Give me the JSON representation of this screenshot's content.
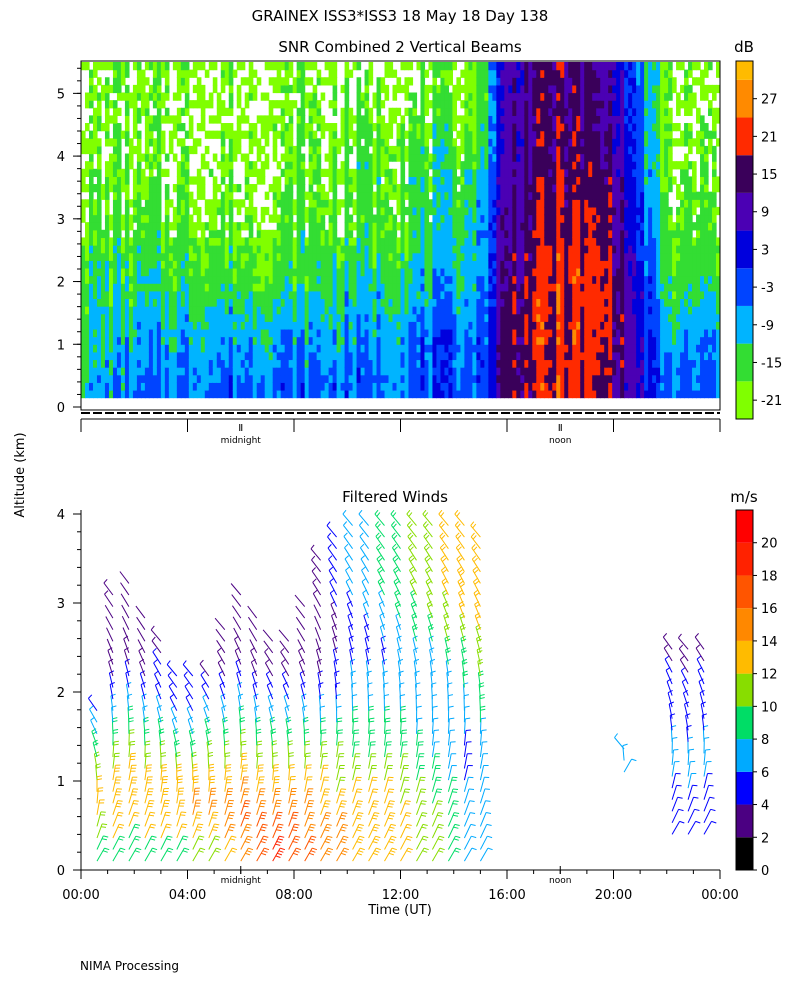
{
  "header": {
    "title": "GRAINEX ISS3*ISS3  18 May 18 Day 138"
  },
  "footer": {
    "processing": "NIMA Processing"
  },
  "shared": {
    "ylabel": "Altitude (km)"
  },
  "chart_data": [
    {
      "type": "heatmap",
      "title": "SNR Combined 2 Vertical Beams",
      "colorbar_label": "dB",
      "colorbar_ticks": [
        "27",
        "21",
        "15",
        "9",
        "3",
        "-3",
        "-9",
        "-15",
        "-21"
      ],
      "colorbar_values": [
        27,
        21,
        15,
        9,
        3,
        -3,
        -9,
        -15,
        -21
      ],
      "colorbar_range": [
        -24,
        33
      ],
      "colors": [
        "#80ff00",
        "#33dd33",
        "#00b4ff",
        "#0044ff",
        "#0000dd",
        "#4b00b4",
        "#3a005a",
        "#ff2a00",
        "#ff8a00",
        "#ffbb00"
      ],
      "xlim_hours": [
        0,
        24
      ],
      "ylim": [
        0,
        5.5
      ],
      "yticks": [
        "0",
        "1",
        "2",
        "3",
        "4",
        "5"
      ],
      "ytick_values": [
        0,
        1,
        2,
        3,
        4,
        5
      ],
      "x_markers": [
        {
          "hour": 6,
          "label": "midnight"
        },
        {
          "hour": 18,
          "label": "noon"
        }
      ],
      "rows_alt_km": [
        0.3,
        1.0,
        2.0,
        3.0,
        4.0,
        5.0
      ],
      "cols_hours": [
        0,
        2,
        4,
        6,
        8,
        10,
        12,
        14,
        15,
        16,
        18,
        20,
        22,
        24
      ],
      "values_db": [
        [
          -10,
          -6,
          -5,
          -4,
          -4,
          -4,
          -4,
          -3,
          -4,
          15,
          20,
          15,
          -5,
          -4
        ],
        [
          -12,
          -10,
          -8,
          -7,
          -8,
          -8,
          -5,
          -4,
          -4,
          15,
          20,
          18,
          -10,
          -6
        ],
        [
          -14,
          -14,
          -14,
          -15,
          -15,
          -12,
          -12,
          -9,
          -9,
          14,
          20,
          18,
          -15,
          -15
        ],
        [
          -18,
          -18,
          -18,
          -19,
          -18,
          -18,
          -15,
          -14,
          -9,
          12,
          18,
          15,
          -18,
          -18
        ],
        [
          -21,
          -21,
          -21,
          -21,
          -21,
          -18,
          -15,
          -15,
          -15,
          9,
          15,
          12,
          -21,
          -21
        ],
        [
          -21,
          -21,
          -21,
          -21,
          -21,
          -21,
          -21,
          -21,
          -18,
          9,
          15,
          9,
          -21,
          -21
        ]
      ]
    },
    {
      "type": "scatter",
      "subtype": "wind_barbs",
      "title": "Filtered Winds",
      "xlabel": "Time (UT)",
      "colorbar_label": "m/s",
      "colorbar_ticks": [
        "20",
        "18",
        "16",
        "14",
        "12",
        "10",
        "8",
        "6",
        "4",
        "2",
        "0"
      ],
      "colorbar_values": [
        20,
        18,
        16,
        14,
        12,
        10,
        8,
        6,
        4,
        2,
        0
      ],
      "colorbar_range": [
        0,
        22
      ],
      "colors": [
        "#000000",
        "#4b0082",
        "#0000ff",
        "#00aaff",
        "#00dd66",
        "#88dd00",
        "#ffbb00",
        "#ff8800",
        "#ff5500",
        "#ff2200",
        "#ff0000"
      ],
      "xlim_hours": [
        0,
        24
      ],
      "ylim": [
        0,
        4
      ],
      "yticks": [
        "0",
        "1",
        "2",
        "3",
        "4"
      ],
      "ytick_values": [
        0,
        1,
        2,
        3,
        4
      ],
      "xticks": [
        "00:00",
        "04:00",
        "08:00",
        "12:00",
        "16:00",
        "20:00",
        "00:00"
      ],
      "xtick_values": [
        0,
        4,
        8,
        12,
        16,
        20,
        24
      ],
      "x_markers": [
        {
          "hour": 6,
          "label": "midnight"
        },
        {
          "hour": 18,
          "label": "noon"
        }
      ],
      "columns": [
        {
          "hour": 0.6,
          "top": 1.9,
          "speeds": [
            8,
            11,
            12,
            12,
            10,
            8,
            6,
            4
          ]
        },
        {
          "hour": 1.2,
          "top": 3.2,
          "speeds": [
            9,
            12,
            13,
            13,
            11,
            9,
            7,
            5,
            3,
            2,
            2,
            3
          ]
        },
        {
          "hour": 1.8,
          "top": 3.3,
          "speeds": [
            9,
            12,
            13,
            13,
            11,
            9,
            7,
            5,
            3,
            2,
            2,
            2
          ]
        },
        {
          "hour": 2.4,
          "top": 2.9,
          "speeds": [
            9,
            12,
            13,
            13,
            11,
            9,
            7,
            5,
            3,
            2,
            2
          ]
        },
        {
          "hour": 3.0,
          "top": 2.6,
          "speeds": [
            9,
            12,
            13,
            13,
            11,
            9,
            7,
            5,
            4,
            3
          ]
        },
        {
          "hour": 3.6,
          "top": 2.2,
          "speeds": [
            9,
            12,
            13,
            13,
            11,
            9,
            7,
            5,
            4
          ]
        },
        {
          "hour": 4.2,
          "top": 2.2,
          "speeds": [
            10,
            13,
            14,
            13,
            11,
            9,
            7,
            5,
            4
          ]
        },
        {
          "hour": 4.8,
          "top": 2.3,
          "speeds": [
            10,
            13,
            14,
            13,
            11,
            9,
            7,
            5,
            3
          ]
        },
        {
          "hour": 5.4,
          "top": 2.7,
          "speeds": [
            12,
            14,
            14,
            13,
            11,
            9,
            7,
            5,
            3,
            2
          ]
        },
        {
          "hour": 6.0,
          "top": 3.1,
          "speeds": [
            14,
            16,
            15,
            13,
            11,
            9,
            7,
            5,
            3,
            2,
            2
          ]
        },
        {
          "hour": 6.6,
          "top": 2.9,
          "speeds": [
            16,
            17,
            15,
            13,
            11,
            9,
            7,
            5,
            3,
            2,
            2
          ]
        },
        {
          "hour": 7.2,
          "top": 2.6,
          "speeds": [
            18,
            17,
            15,
            13,
            11,
            9,
            7,
            5,
            3,
            2
          ]
        },
        {
          "hour": 7.8,
          "top": 2.6,
          "speeds": [
            17,
            16,
            14,
            12,
            10,
            8,
            6,
            4,
            3,
            2
          ]
        },
        {
          "hour": 8.4,
          "top": 3.0,
          "speeds": [
            16,
            15,
            14,
            12,
            10,
            8,
            6,
            4,
            3,
            2,
            2
          ]
        },
        {
          "hour": 9.0,
          "top": 3.5,
          "speeds": [
            15,
            15,
            13,
            12,
            10,
            8,
            6,
            5,
            3,
            2,
            2,
            3,
            3
          ]
        },
        {
          "hour": 9.6,
          "top": 3.8,
          "speeds": [
            14,
            14,
            13,
            11,
            10,
            8,
            6,
            5,
            4,
            3,
            3,
            4,
            5,
            5
          ]
        },
        {
          "hour": 10.2,
          "top": 3.9,
          "speeds": [
            13,
            13,
            12,
            11,
            9,
            8,
            7,
            6,
            5,
            5,
            5,
            6,
            6,
            6
          ]
        },
        {
          "hour": 10.8,
          "top": 3.9,
          "speeds": [
            13,
            13,
            12,
            11,
            9,
            8,
            7,
            6,
            5,
            5,
            6,
            7,
            7,
            7
          ]
        },
        {
          "hour": 11.4,
          "top": 3.9,
          "speeds": [
            13,
            13,
            12,
            11,
            9,
            8,
            7,
            6,
            5,
            6,
            7,
            8,
            8,
            8
          ]
        },
        {
          "hour": 12.0,
          "top": 3.9,
          "speeds": [
            12,
            12,
            11,
            10,
            9,
            8,
            7,
            6,
            6,
            7,
            8,
            9,
            9,
            9
          ]
        },
        {
          "hour": 12.6,
          "top": 3.9,
          "speeds": [
            11,
            11,
            10,
            9,
            8,
            7,
            7,
            6,
            6,
            8,
            9,
            10,
            10,
            10
          ]
        },
        {
          "hour": 13.2,
          "top": 3.9,
          "speeds": [
            10,
            10,
            9,
            8,
            7,
            7,
            6,
            6,
            7,
            9,
            10,
            11,
            11,
            11
          ]
        },
        {
          "hour": 13.8,
          "top": 3.9,
          "speeds": [
            9,
            9,
            8,
            7,
            6,
            6,
            6,
            7,
            8,
            10,
            11,
            12,
            12,
            12
          ]
        },
        {
          "hour": 14.4,
          "top": 3.9,
          "speeds": [
            7,
            7,
            6,
            5,
            5,
            6,
            7,
            8,
            9,
            11,
            12,
            13,
            12,
            12
          ]
        },
        {
          "hour": 15.0,
          "top": 3.8,
          "speeds": [
            7,
            7,
            7,
            6,
            6,
            7,
            8,
            9,
            10,
            11,
            12,
            12,
            12,
            12
          ]
        },
        {
          "hour": 20.4,
          "top": 1.4,
          "bottom": 1.1,
          "speeds": [
            6,
            7
          ]
        },
        {
          "hour": 22.2,
          "top": 2.6,
          "bottom": 0.4,
          "speeds": [
            4,
            5,
            6,
            6,
            5,
            5,
            4,
            3
          ]
        },
        {
          "hour": 22.8,
          "top": 2.5,
          "bottom": 0.4,
          "speeds": [
            4,
            5,
            6,
            6,
            5,
            5,
            4,
            3
          ]
        },
        {
          "hour": 23.4,
          "top": 2.6,
          "bottom": 0.4,
          "speeds": [
            4,
            5,
            6,
            6,
            5,
            5,
            4,
            3
          ]
        }
      ]
    }
  ]
}
